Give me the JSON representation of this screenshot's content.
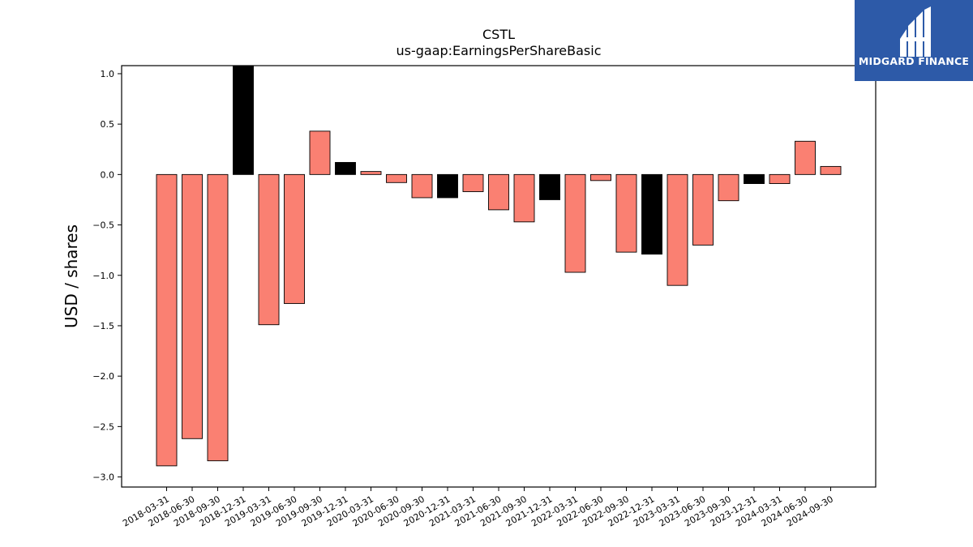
{
  "brand": {
    "name": "MIDGARD FINANCE",
    "background_color": "#2d5aa8",
    "icon": "midgard-logo-icon"
  },
  "chart_data": {
    "type": "bar",
    "title": "CSTL",
    "subtitle": "us-gaap:EarningsPerShareBasic",
    "xlabel": "",
    "ylabel": "USD / shares",
    "ylim": [
      -3.1,
      1.08
    ],
    "yticks": [
      1.0,
      0.5,
      0.0,
      -0.5,
      -1.0,
      -1.5,
      -2.0,
      -2.5,
      -3.0
    ],
    "ytick_labels": [
      "1.0",
      "0.5",
      "0.0",
      "−0.5",
      "−1.0",
      "−1.5",
      "−2.0",
      "−2.5",
      "−3.0"
    ],
    "grid": false,
    "colors": {
      "quarterly": "#fa8072",
      "annual": "#000000",
      "edge": "#000000"
    },
    "categories": [
      "2018-03-31",
      "2018-06-30",
      "2018-09-30",
      "2018-12-31",
      "2019-03-31",
      "2019-06-30",
      "2019-09-30",
      "2019-12-31",
      "2020-03-31",
      "2020-06-30",
      "2020-09-30",
      "2020-12-31",
      "2021-03-31",
      "2021-06-30",
      "2021-09-30",
      "2021-12-31",
      "2022-03-31",
      "2022-06-30",
      "2022-09-30",
      "2022-12-31",
      "2023-03-31",
      "2023-06-30",
      "2023-09-30",
      "2023-12-31",
      "2024-03-31",
      "2024-06-30",
      "2024-09-30"
    ],
    "values": [
      -2.89,
      -2.62,
      -2.84,
      1.08,
      -1.49,
      -1.28,
      0.43,
      0.12,
      0.03,
      -0.08,
      -0.23,
      -0.23,
      -0.17,
      -0.35,
      -0.47,
      -0.25,
      -0.97,
      -0.06,
      -0.77,
      -0.79,
      -1.1,
      -0.7,
      -0.26,
      -0.09,
      -0.09,
      0.33,
      0.08
    ],
    "bar_colors": [
      "#fa8072",
      "#fa8072",
      "#fa8072",
      "#000000",
      "#fa8072",
      "#fa8072",
      "#fa8072",
      "#000000",
      "#fa8072",
      "#fa8072",
      "#fa8072",
      "#000000",
      "#fa8072",
      "#fa8072",
      "#fa8072",
      "#000000",
      "#fa8072",
      "#fa8072",
      "#fa8072",
      "#000000",
      "#fa8072",
      "#fa8072",
      "#fa8072",
      "#000000",
      "#fa8072",
      "#fa8072",
      "#fa8072"
    ]
  }
}
